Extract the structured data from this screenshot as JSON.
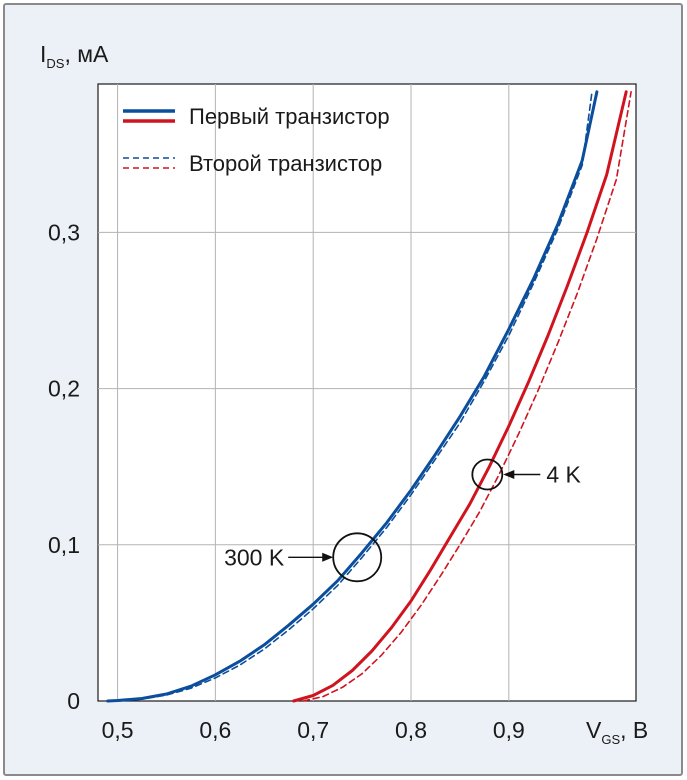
{
  "chart_data": {
    "type": "line",
    "title": "",
    "xlabel": {
      "main": "V",
      "sub": "GS",
      "unit": ", В"
    },
    "ylabel": {
      "main": "I",
      "sub": "DS",
      "unit": ", мА"
    },
    "xlim": [
      0.48,
      1.03
    ],
    "ylim": [
      0,
      0.395
    ],
    "xticks": [
      0.5,
      0.6,
      0.7,
      0.8,
      0.9
    ],
    "xtick_labels": [
      "0,5",
      "0,6",
      "0,7",
      "0,8",
      "0,9"
    ],
    "yticks": [
      0,
      0.1,
      0.2,
      0.3
    ],
    "ytick_labels": [
      "0",
      "0,1",
      "0,2",
      "0,3"
    ],
    "grid": true,
    "legend_position": "top-left",
    "legend": [
      {
        "label": "Первый транзистор",
        "style": "solid"
      },
      {
        "label": "Второй транзистор",
        "style": "dashed"
      }
    ],
    "series": [
      {
        "style": "solid",
        "color": "#0a4e9c",
        "temperature": "300 K",
        "x": [
          0.49,
          0.5,
          0.525,
          0.55,
          0.575,
          0.6,
          0.625,
          0.65,
          0.675,
          0.7,
          0.725,
          0.75,
          0.775,
          0.8,
          0.825,
          0.85,
          0.875,
          0.9,
          0.925,
          0.95,
          0.975,
          0.99
        ],
        "y": [
          0,
          0.0003,
          0.0016,
          0.0045,
          0.0095,
          0.0168,
          0.0255,
          0.036,
          0.0485,
          0.062,
          0.077,
          0.095,
          0.114,
          0.135,
          0.158,
          0.182,
          0.208,
          0.238,
          0.27,
          0.305,
          0.346,
          0.39
        ]
      },
      {
        "style": "dashed",
        "color": "#0a4e9c",
        "temperature": "300 K",
        "x": [
          0.5,
          0.525,
          0.55,
          0.575,
          0.6,
          0.625,
          0.65,
          0.675,
          0.7,
          0.725,
          0.75,
          0.775,
          0.8,
          0.825,
          0.85,
          0.875,
          0.9,
          0.925,
          0.95,
          0.975,
          0.985
        ],
        "y": [
          0,
          0.0012,
          0.0038,
          0.0082,
          0.0148,
          0.023,
          0.0333,
          0.0456,
          0.059,
          0.074,
          0.092,
          0.111,
          0.132,
          0.155,
          0.178,
          0.205,
          0.234,
          0.267,
          0.302,
          0.343,
          0.39
        ]
      },
      {
        "style": "solid",
        "color": "#d0141e",
        "temperature": "4 K",
        "x": [
          0.68,
          0.7,
          0.72,
          0.74,
          0.76,
          0.78,
          0.8,
          0.82,
          0.84,
          0.86,
          0.88,
          0.9,
          0.92,
          0.94,
          0.96,
          0.98,
          1.0,
          1.02
        ],
        "y": [
          0,
          0.0035,
          0.01,
          0.0195,
          0.032,
          0.047,
          0.064,
          0.084,
          0.105,
          0.126,
          0.15,
          0.176,
          0.204,
          0.234,
          0.266,
          0.3,
          0.337,
          0.39
        ]
      },
      {
        "style": "dashed",
        "color": "#d0141e",
        "temperature": "4 K",
        "x": [
          0.69,
          0.71,
          0.73,
          0.75,
          0.77,
          0.79,
          0.81,
          0.83,
          0.85,
          0.87,
          0.89,
          0.91,
          0.93,
          0.95,
          0.97,
          0.99,
          1.01,
          1.025
        ],
        "y": [
          0,
          0.0028,
          0.0088,
          0.0175,
          0.0295,
          0.044,
          0.061,
          0.08,
          0.1,
          0.121,
          0.145,
          0.171,
          0.199,
          0.229,
          0.261,
          0.296,
          0.334,
          0.39
        ]
      }
    ],
    "annotations": [
      {
        "label": "300 K",
        "x": 0.745,
        "y": 0.092,
        "label_side": "left"
      },
      {
        "label": "4 K",
        "x": 0.878,
        "y": 0.145,
        "label_side": "right"
      }
    ]
  }
}
